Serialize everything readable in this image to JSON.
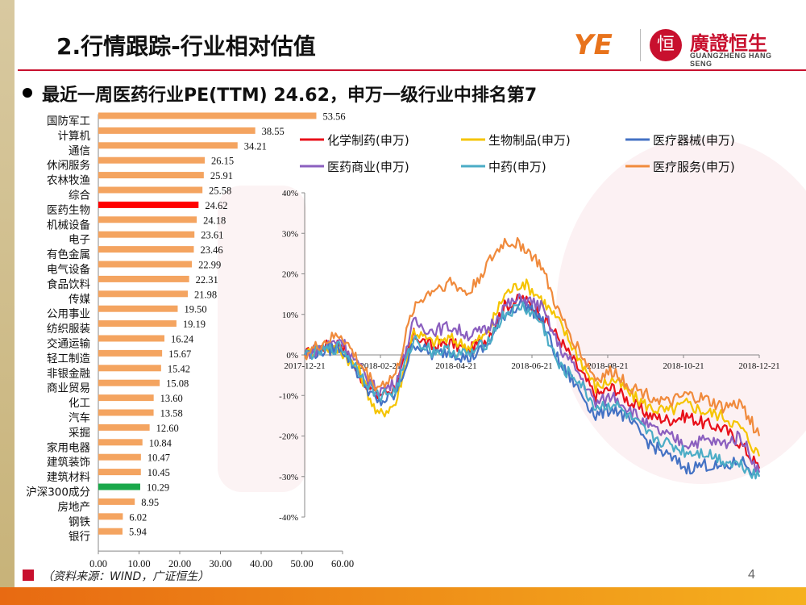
{
  "page": {
    "title": "2.行情跟踪-行业相对估值",
    "subtitle": "最近一周医药行业PE(TTM) 24.62，申万一级行业中排名第7",
    "source": "（资料来源：WIND，广证恒生）",
    "page_number": "4",
    "logo": {
      "mark": "YE",
      "seal": "恒",
      "cn_name": "廣證恒生",
      "en_name": "GUANGZHENG HANG SENG"
    }
  },
  "colors": {
    "accent": "#c8102e",
    "bar_default": "#f4a460",
    "bar_highlight_pharma": "#ff0000",
    "bar_highlight_index": "#1aa84a",
    "bottom_bar": "#e86a12"
  },
  "chart_data": [
    {
      "type": "bar",
      "orientation": "horizontal",
      "categories": [
        "国防军工",
        "计算机",
        "通信",
        "休闲服务",
        "农林牧渔",
        "综合",
        "医药生物",
        "机械设备",
        "电子",
        "有色金属",
        "电气设备",
        "食品饮料",
        "传媒",
        "公用事业",
        "纺织服装",
        "交通运输",
        "轻工制造",
        "非银金融",
        "商业贸易",
        "化工",
        "汽车",
        "采掘",
        "家用电器",
        "建筑装饰",
        "建筑材料",
        "沪深300成分",
        "房地产",
        "钢铁",
        "银行"
      ],
      "values": [
        53.56,
        38.55,
        34.21,
        26.15,
        25.91,
        25.58,
        24.62,
        24.18,
        23.61,
        23.46,
        22.99,
        22.31,
        21.98,
        19.5,
        19.19,
        16.24,
        15.67,
        15.42,
        15.08,
        13.6,
        13.58,
        12.6,
        10.84,
        10.47,
        10.45,
        10.29,
        8.95,
        6.02,
        5.94
      ],
      "value_labels": [
        "53.56",
        "38.55",
        "34.21",
        "26.15",
        "25.91",
        "25.58",
        "24.62",
        "24.18",
        "23.61",
        "23.46",
        "22.99",
        "22.31",
        "21.98",
        "19.50",
        "19.19",
        "16.24",
        "15.67",
        "15.42",
        "15.08",
        "13.60",
        "13.58",
        "12.60",
        "10.84",
        "10.47",
        "10.45",
        "10.29",
        "8.95",
        "6.02",
        "5.94"
      ],
      "highlight": {
        "医药生物": "red",
        "沪深300成分": "green"
      },
      "xlim": [
        0,
        60
      ],
      "x_ticks": [
        "0.00",
        "10.00",
        "20.00",
        "30.00",
        "40.00",
        "50.00",
        "60.00"
      ]
    },
    {
      "type": "line",
      "x_ticks": [
        "2017-12-21",
        "2018-02-21",
        "2018-04-21",
        "2018-06-21",
        "2018-08-21",
        "2018-10-21",
        "2018-12-21"
      ],
      "y_ticks": [
        "40%",
        "30%",
        "20%",
        "10%",
        "0%",
        "-10%",
        "-20%",
        "-30%",
        "-40%"
      ],
      "ylim": [
        -40,
        40
      ],
      "legend_position": "top",
      "series": [
        {
          "name": "化学制药(申万)",
          "color": "#e8101a",
          "values": [
            0,
            2,
            3,
            -5,
            -10,
            -8,
            5,
            2,
            3,
            1,
            4,
            12,
            14,
            10,
            4,
            -3,
            -10,
            -8,
            -12,
            -15,
            -16,
            -15,
            -17,
            -18,
            -22,
            -28
          ]
        },
        {
          "name": "生物制品(申万)",
          "color": "#f5c400",
          "values": [
            0,
            2,
            1,
            -4,
            -15,
            -12,
            6,
            3,
            4,
            2,
            5,
            15,
            18,
            14,
            8,
            0,
            -8,
            -6,
            -10,
            -13,
            -14,
            -12,
            -14,
            -15,
            -18,
            -25
          ]
        },
        {
          "name": "医疗器械(申万)",
          "color": "#4472c4",
          "values": [
            0,
            1,
            2,
            -5,
            -12,
            -10,
            3,
            0,
            1,
            -1,
            2,
            10,
            13,
            9,
            -2,
            -8,
            -15,
            -13,
            -17,
            -22,
            -25,
            -28,
            -27,
            -28,
            -26,
            -30
          ]
        },
        {
          "name": "医药商业(申万)",
          "color": "#8b5fbf",
          "values": [
            0,
            2,
            4,
            -3,
            -9,
            -7,
            8,
            6,
            7,
            5,
            6,
            12,
            14,
            12,
            2,
            -4,
            -12,
            -10,
            -14,
            -18,
            -20,
            -22,
            -21,
            -22,
            -20,
            -29
          ]
        },
        {
          "name": "中药(申万)",
          "color": "#4bacc6",
          "values": [
            0,
            1,
            2,
            -4,
            -10,
            -9,
            4,
            1,
            1,
            0,
            3,
            10,
            12,
            8,
            -3,
            -6,
            -13,
            -12,
            -16,
            -20,
            -22,
            -24,
            -24,
            -26,
            -27,
            -30
          ]
        },
        {
          "name": "医疗服务(申万)",
          "color": "#f08a3c",
          "values": [
            0,
            3,
            5,
            -2,
            -8,
            -5,
            12,
            16,
            18,
            15,
            22,
            28,
            27,
            22,
            10,
            2,
            -6,
            -4,
            -8,
            -10,
            -12,
            -10,
            -11,
            -13,
            -12,
            -20
          ]
        }
      ]
    }
  ]
}
